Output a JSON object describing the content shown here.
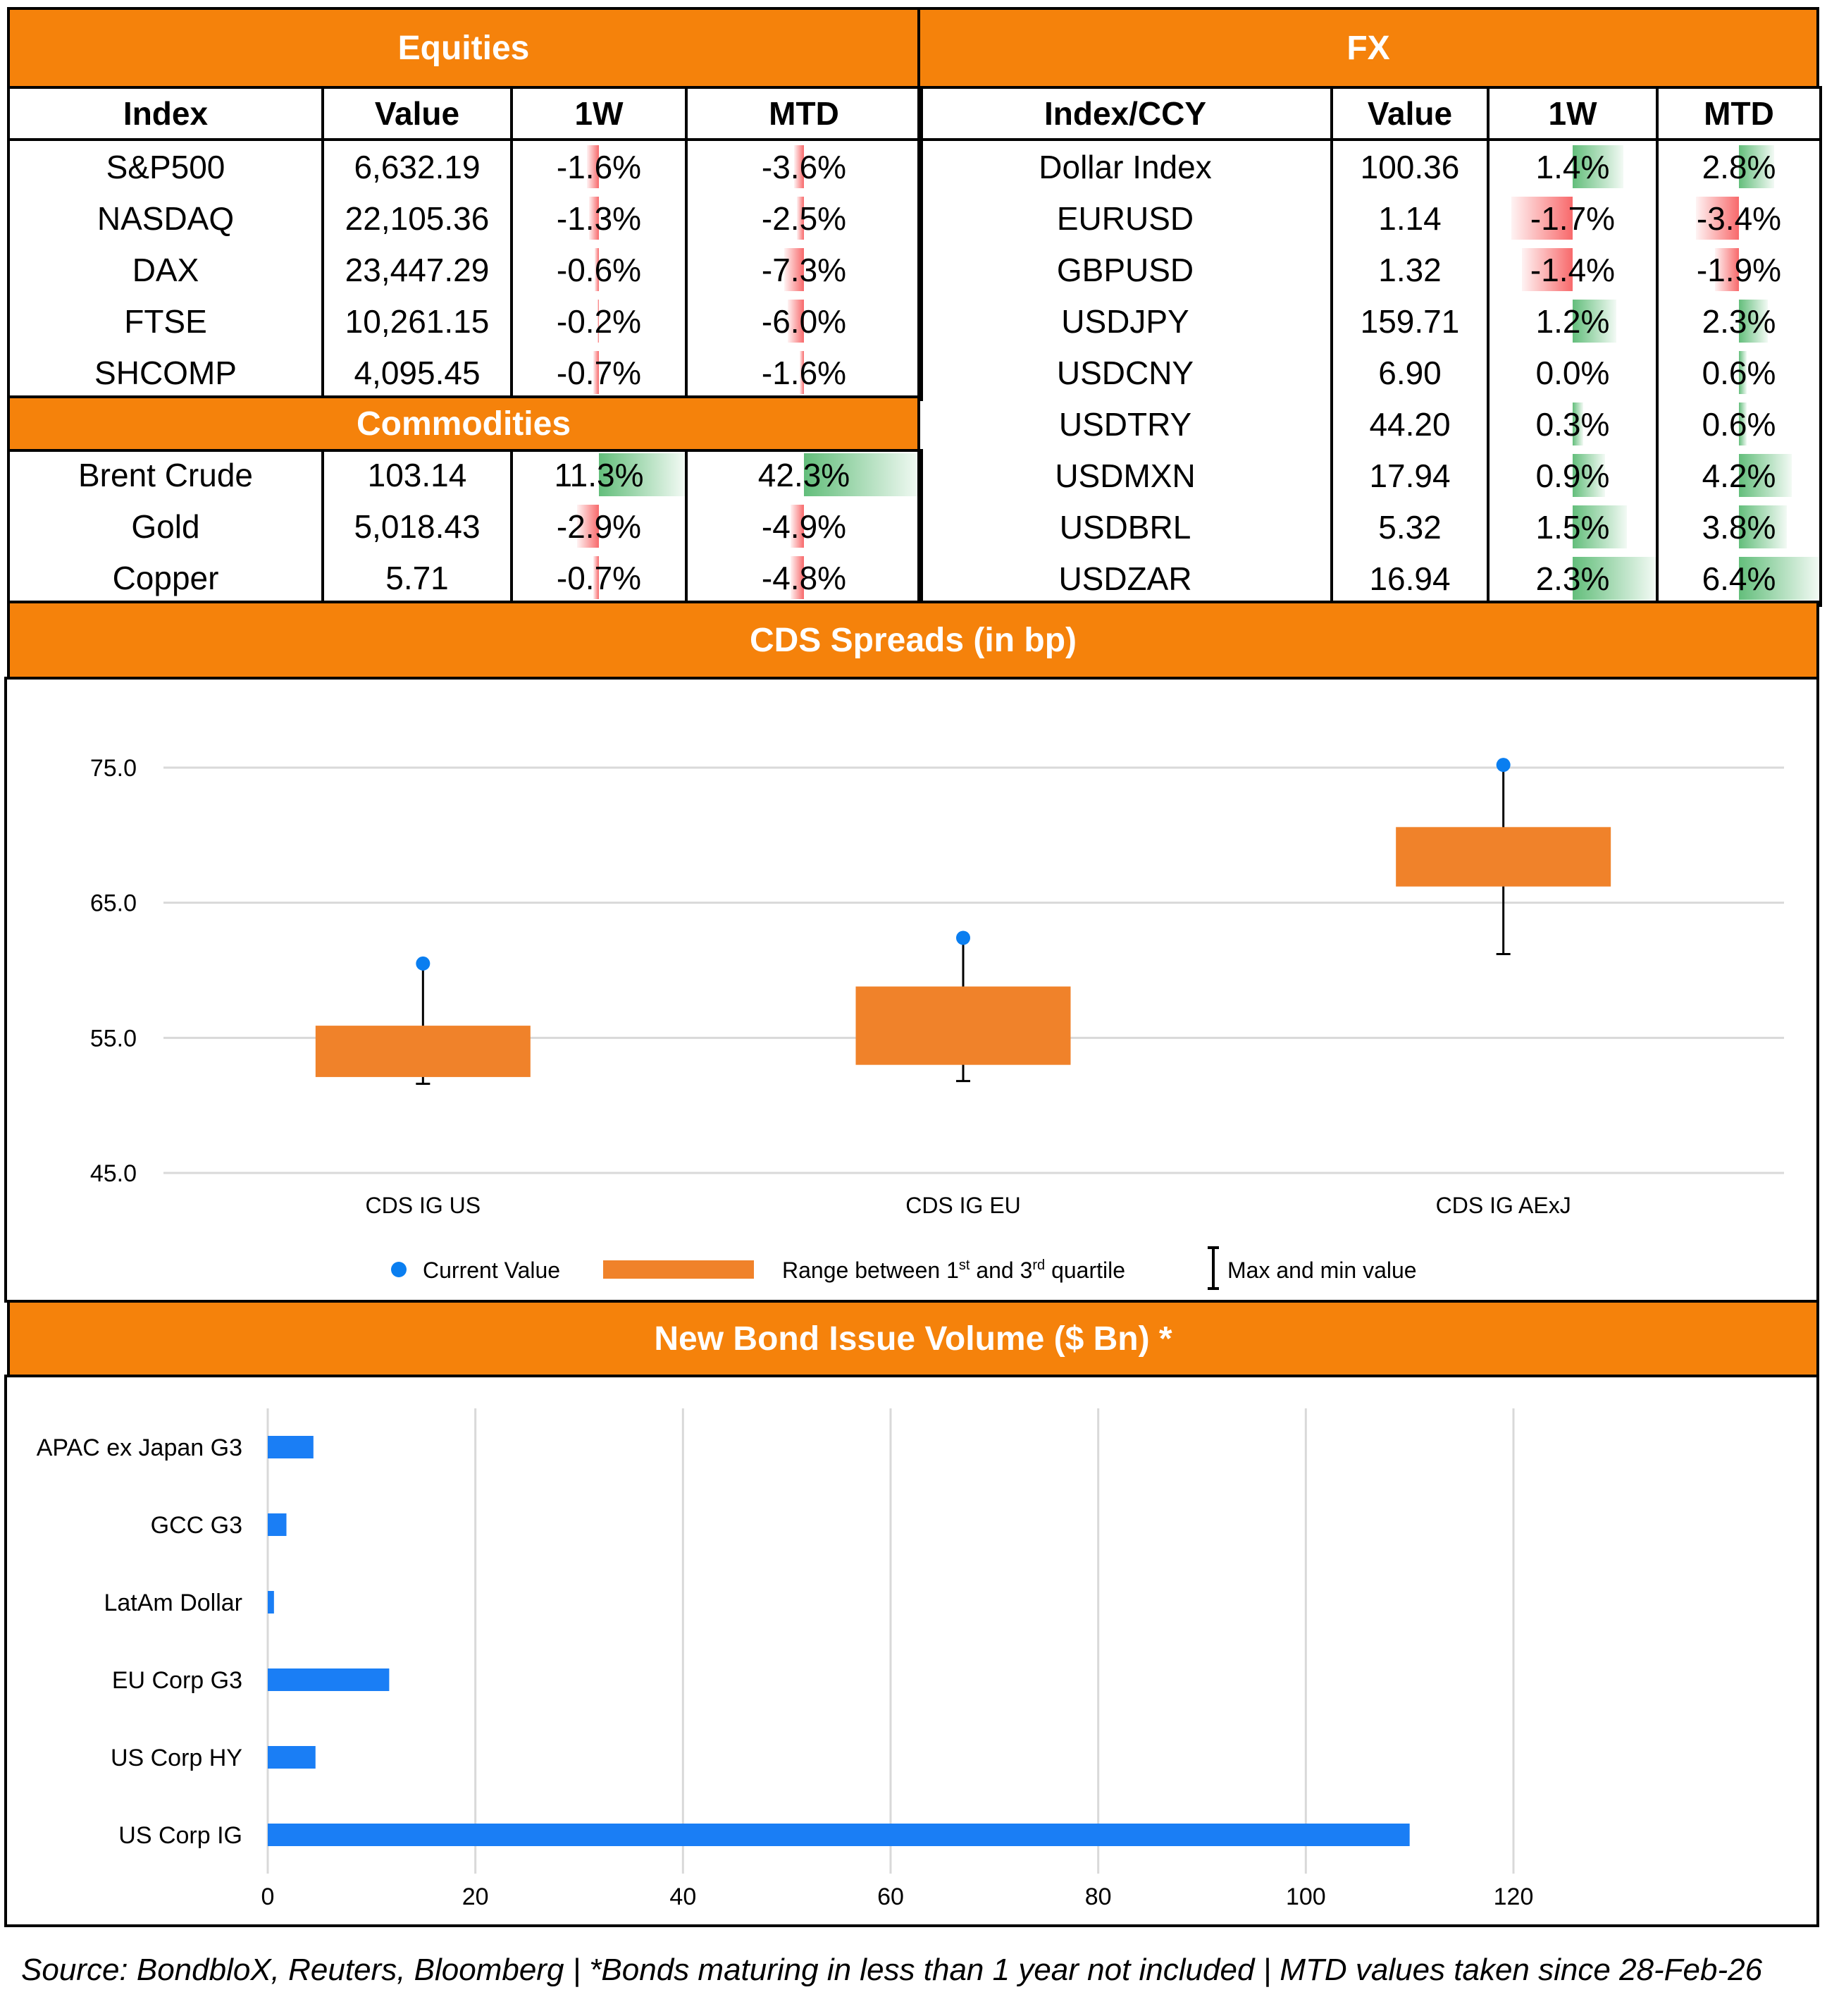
{
  "colors": {
    "header_bg": "#F5820B",
    "neg_bar": "#F8696B",
    "pos_bar": "#63BE7B",
    "box": "#F0822A",
    "dot": "#0A7EF0",
    "hbar": "#1A7EF5"
  },
  "equities": {
    "title": "Equities",
    "columns": [
      "Index",
      "Value",
      "1W",
      "MTD"
    ],
    "rows": [
      {
        "name": "S&P500",
        "value": "6,632.19",
        "w1": "-1.6%",
        "mtd": "-3.6%",
        "w1_num": -1.6,
        "mtd_num": -3.6
      },
      {
        "name": "NASDAQ",
        "value": "22,105.36",
        "w1": "-1.3%",
        "mtd": "-2.5%",
        "w1_num": -1.3,
        "mtd_num": -2.5
      },
      {
        "name": "DAX",
        "value": "23,447.29",
        "w1": "-0.6%",
        "mtd": "-7.3%",
        "w1_num": -0.6,
        "mtd_num": -7.3
      },
      {
        "name": "FTSE",
        "value": "10,261.15",
        "w1": "-0.2%",
        "mtd": "-6.0%",
        "w1_num": -0.2,
        "mtd_num": -6.0
      },
      {
        "name": "SHCOMP",
        "value": "4,095.45",
        "w1": "-0.7%",
        "mtd": "-1.6%",
        "w1_num": -0.7,
        "mtd_num": -1.6
      }
    ]
  },
  "commodities": {
    "title": "Commodities",
    "rows": [
      {
        "name": "Brent Crude",
        "value": "103.14",
        "w1": "11.3%",
        "mtd": "42.3%",
        "w1_num": 11.3,
        "mtd_num": 42.3
      },
      {
        "name": "Gold",
        "value": "5,018.43",
        "w1": "-2.9%",
        "mtd": "-4.9%",
        "w1_num": -2.9,
        "mtd_num": -4.9
      },
      {
        "name": "Copper",
        "value": "5.71",
        "w1": "-0.7%",
        "mtd": "-4.8%",
        "w1_num": -0.7,
        "mtd_num": -4.8
      }
    ]
  },
  "fx": {
    "title": "FX",
    "columns": [
      "Index/CCY",
      "Value",
      "1W",
      "MTD"
    ],
    "rows": [
      {
        "name": "Dollar Index",
        "value": "100.36",
        "w1": "1.4%",
        "mtd": "2.8%",
        "w1_num": 1.4,
        "mtd_num": 2.8
      },
      {
        "name": "EURUSD",
        "value": "1.14",
        "w1": "-1.7%",
        "mtd": "-3.4%",
        "w1_num": -1.7,
        "mtd_num": -3.4
      },
      {
        "name": "GBPUSD",
        "value": "1.32",
        "w1": "-1.4%",
        "mtd": "-1.9%",
        "w1_num": -1.4,
        "mtd_num": -1.9
      },
      {
        "name": "USDJPY",
        "value": "159.71",
        "w1": "1.2%",
        "mtd": "2.3%",
        "w1_num": 1.2,
        "mtd_num": 2.3
      },
      {
        "name": "USDCNY",
        "value": "6.90",
        "w1": "0.0%",
        "mtd": "0.6%",
        "w1_num": 0.0,
        "mtd_num": 0.6
      },
      {
        "name": "USDTRY",
        "value": "44.20",
        "w1": "0.3%",
        "mtd": "0.6%",
        "w1_num": 0.3,
        "mtd_num": 0.6
      },
      {
        "name": "USDMXN",
        "value": "17.94",
        "w1": "0.9%",
        "mtd": "4.2%",
        "w1_num": 0.9,
        "mtd_num": 4.2
      },
      {
        "name": "USDBRL",
        "value": "5.32",
        "w1": "1.5%",
        "mtd": "3.8%",
        "w1_num": 1.5,
        "mtd_num": 3.8
      },
      {
        "name": "USDZAR",
        "value": "16.94",
        "w1": "2.3%",
        "mtd": "6.4%",
        "w1_num": 2.3,
        "mtd_num": 6.4
      }
    ]
  },
  "cds_section": {
    "title": "CDS Spreads (in bp)"
  },
  "bond_section": {
    "title": "New Bond Issue Volume ($ Bn) *"
  },
  "chart_data": [
    {
      "type": "box",
      "title": "CDS Spreads (in bp)",
      "categories": [
        "CDS IG US",
        "CDS IG EU",
        "CDS IG AExJ"
      ],
      "current": [
        60.5,
        62.4,
        75.2
      ],
      "q1": [
        52.1,
        53.0,
        66.2
      ],
      "q3": [
        55.9,
        58.8,
        70.6
      ],
      "min": [
        51.6,
        51.8,
        61.2
      ],
      "max": [
        60.5,
        62.4,
        75.2
      ],
      "ylim": [
        45,
        75
      ],
      "yticks": [
        "45.0",
        "55.0",
        "65.0",
        "75.0"
      ],
      "legend": {
        "current": "Current Value",
        "range_pre": "Range between 1",
        "range_sup1": "st",
        "range_mid": " and 3",
        "range_sup2": "rd",
        "range_post": " quartile",
        "minmax": "Max and min value"
      }
    },
    {
      "type": "bar",
      "orientation": "horizontal",
      "title": "New Bond Issue Volume ($ Bn) *",
      "categories": [
        "APAC ex Japan G3",
        "GCC G3",
        "LatAm Dollar",
        "EU Corp G3",
        "US Corp HY",
        "US Corp IG"
      ],
      "values": [
        4.4,
        1.8,
        0.6,
        11.7,
        4.6,
        110.0
      ],
      "xlim": [
        0,
        120
      ],
      "xticks": [
        "0",
        "20",
        "40",
        "60",
        "80",
        "100",
        "120"
      ]
    }
  ],
  "footer": "Source: BondbloX, Reuters, Bloomberg | *Bonds maturing in less than 1 year not included | MTD values taken since 28-Feb-26"
}
